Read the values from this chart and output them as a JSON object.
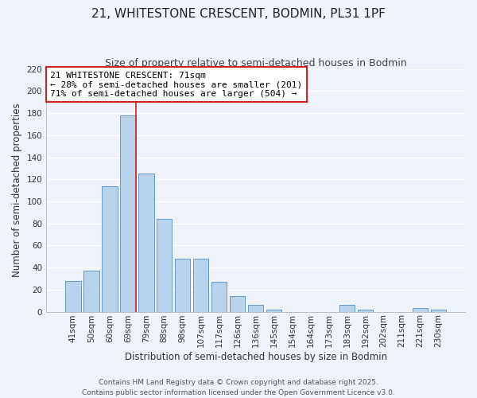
{
  "title": "21, WHITESTONE CRESCENT, BODMIN, PL31 1PF",
  "subtitle": "Size of property relative to semi-detached houses in Bodmin",
  "xlabel": "Distribution of semi-detached houses by size in Bodmin",
  "ylabel": "Number of semi-detached properties",
  "bar_labels": [
    "41sqm",
    "50sqm",
    "60sqm",
    "69sqm",
    "79sqm",
    "88sqm",
    "98sqm",
    "107sqm",
    "117sqm",
    "126sqm",
    "136sqm",
    "145sqm",
    "154sqm",
    "164sqm",
    "173sqm",
    "183sqm",
    "192sqm",
    "202sqm",
    "211sqm",
    "221sqm",
    "230sqm"
  ],
  "bar_values": [
    28,
    37,
    114,
    178,
    125,
    84,
    48,
    48,
    27,
    14,
    6,
    2,
    0,
    0,
    0,
    6,
    2,
    0,
    0,
    3,
    2
  ],
  "bar_color": "#b8d4ec",
  "bar_edge_color": "#6699cc",
  "background_color": "#eef2fb",
  "grid_color": "#ffffff",
  "property_line_bar_index": 3,
  "annotation_line1": "21 WHITESTONE CRESCENT: 71sqm",
  "annotation_line2": "← 28% of semi-detached houses are smaller (201)",
  "annotation_line3": "71% of semi-detached houses are larger (504) →",
  "annotation_box_color": "#ffffff",
  "annotation_border_color": "#cc2222",
  "property_line_color": "#cc2222",
  "footer_line1": "Contains HM Land Registry data © Crown copyright and database right 2025.",
  "footer_line2": "Contains public sector information licensed under the Open Government Licence v3.0.",
  "ylim": [
    0,
    220
  ],
  "yticks": [
    0,
    20,
    40,
    60,
    80,
    100,
    120,
    140,
    160,
    180,
    200,
    220
  ],
  "title_fontsize": 11,
  "subtitle_fontsize": 9,
  "axis_label_fontsize": 8.5,
  "tick_fontsize": 7.5,
  "annotation_fontsize": 8,
  "footer_fontsize": 6.5
}
